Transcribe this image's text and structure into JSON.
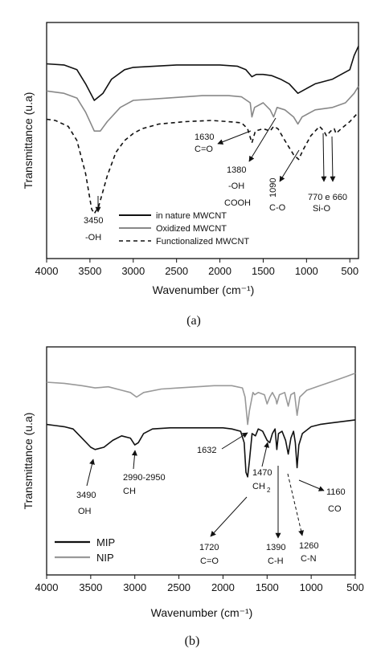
{
  "chart_data": [
    {
      "type": "line",
      "panel": "(a)",
      "xlabel": "Wavenumber (cm⁻¹)",
      "ylabel": "Transmittance (u.a)",
      "xlim": [
        4000,
        400
      ],
      "x_reversed": true,
      "xticks": [
        4000,
        3500,
        3000,
        2500,
        2000,
        1500,
        1000,
        500
      ],
      "ylim": [
        0,
        1
      ],
      "y_ticklabels": false,
      "grid": false,
      "legend_position": "bottom-center",
      "series": [
        {
          "name": "in nature MWCNT",
          "color": "#111111",
          "dash": "solid",
          "points": [
            [
              4000,
              0.825
            ],
            [
              3800,
              0.82
            ],
            [
              3650,
              0.8
            ],
            [
              3550,
              0.74
            ],
            [
              3450,
              0.67
            ],
            [
              3350,
              0.7
            ],
            [
              3250,
              0.76
            ],
            [
              3100,
              0.8
            ],
            [
              3000,
              0.81
            ],
            [
              2500,
              0.82
            ],
            [
              2000,
              0.82
            ],
            [
              1800,
              0.815
            ],
            [
              1700,
              0.8
            ],
            [
              1630,
              0.77
            ],
            [
              1580,
              0.78
            ],
            [
              1500,
              0.78
            ],
            [
              1400,
              0.775
            ],
            [
              1300,
              0.76
            ],
            [
              1200,
              0.74
            ],
            [
              1100,
              0.7
            ],
            [
              1000,
              0.72
            ],
            [
              900,
              0.74
            ],
            [
              800,
              0.75
            ],
            [
              700,
              0.76
            ],
            [
              600,
              0.78
            ],
            [
              500,
              0.8
            ],
            [
              450,
              0.86
            ],
            [
              400,
              0.9
            ]
          ]
        },
        {
          "name": "Oxidized MWCNT",
          "color": "#888888",
          "dash": "solid",
          "points": [
            [
              4000,
              0.71
            ],
            [
              3800,
              0.7
            ],
            [
              3650,
              0.68
            ],
            [
              3550,
              0.62
            ],
            [
              3450,
              0.54
            ],
            [
              3380,
              0.54
            ],
            [
              3300,
              0.58
            ],
            [
              3150,
              0.64
            ],
            [
              3000,
              0.67
            ],
            [
              2600,
              0.68
            ],
            [
              2200,
              0.69
            ],
            [
              1900,
              0.69
            ],
            [
              1750,
              0.685
            ],
            [
              1650,
              0.66
            ],
            [
              1630,
              0.6
            ],
            [
              1600,
              0.64
            ],
            [
              1500,
              0.66
            ],
            [
              1420,
              0.63
            ],
            [
              1380,
              0.6
            ],
            [
              1340,
              0.64
            ],
            [
              1250,
              0.63
            ],
            [
              1150,
              0.6
            ],
            [
              1100,
              0.57
            ],
            [
              1050,
              0.6
            ],
            [
              900,
              0.63
            ],
            [
              700,
              0.64
            ],
            [
              550,
              0.66
            ],
            [
              450,
              0.7
            ],
            [
              400,
              0.73
            ]
          ]
        },
        {
          "name": "Functionalized MWCNT",
          "color": "#111111",
          "dash": "dashed",
          "points": [
            [
              4000,
              0.59
            ],
            [
              3900,
              0.585
            ],
            [
              3750,
              0.56
            ],
            [
              3650,
              0.5
            ],
            [
              3550,
              0.36
            ],
            [
              3480,
              0.21
            ],
            [
              3450,
              0.19
            ],
            [
              3400,
              0.22
            ],
            [
              3300,
              0.35
            ],
            [
              3200,
              0.45
            ],
            [
              3100,
              0.5
            ],
            [
              3000,
              0.53
            ],
            [
              2900,
              0.55
            ],
            [
              2700,
              0.57
            ],
            [
              2400,
              0.58
            ],
            [
              2100,
              0.585
            ],
            [
              1900,
              0.58
            ],
            [
              1750,
              0.575
            ],
            [
              1680,
              0.55
            ],
            [
              1630,
              0.49
            ],
            [
              1590,
              0.54
            ],
            [
              1500,
              0.55
            ],
            [
              1420,
              0.54
            ],
            [
              1380,
              0.56
            ],
            [
              1330,
              0.55
            ],
            [
              1250,
              0.5
            ],
            [
              1150,
              0.44
            ],
            [
              1090,
              0.42
            ],
            [
              1040,
              0.46
            ],
            [
              950,
              0.52
            ],
            [
              850,
              0.56
            ],
            [
              800,
              0.54
            ],
            [
              770,
              0.52
            ],
            [
              720,
              0.54
            ],
            [
              680,
              0.55
            ],
            [
              660,
              0.53
            ],
            [
              600,
              0.55
            ],
            [
              500,
              0.58
            ],
            [
              450,
              0.6
            ],
            [
              400,
              0.62
            ]
          ]
        }
      ],
      "annotations": [
        {
          "text": "1630",
          "text2": "C=O"
        },
        {
          "text": "1380",
          "text2": "-OH",
          "text3": "COOH"
        },
        {
          "text": "1090",
          "text2": "C-O"
        },
        {
          "text": "770 e 660",
          "text2": "Si-O"
        },
        {
          "text": "3450",
          "text2": "-OH"
        }
      ]
    },
    {
      "type": "line",
      "panel": "(b)",
      "xlabel": "Wavenumber (cm⁻¹)",
      "ylabel": "Transmittance (u.a)",
      "xlim": [
        4000,
        500
      ],
      "x_reversed": true,
      "xticks": [
        4000,
        3500,
        3000,
        2500,
        2000,
        1500,
        1000,
        500
      ],
      "ylim": [
        0,
        1
      ],
      "y_ticklabels": false,
      "grid": false,
      "legend_position": "bottom-left",
      "series": [
        {
          "name": "NIP",
          "color": "#999999",
          "dash": "solid",
          "points": [
            [
              4000,
              0.845
            ],
            [
              3800,
              0.84
            ],
            [
              3600,
              0.83
            ],
            [
              3450,
              0.82
            ],
            [
              3300,
              0.825
            ],
            [
              3150,
              0.81
            ],
            [
              3050,
              0.8
            ],
            [
              2980,
              0.78
            ],
            [
              2900,
              0.8
            ],
            [
              2700,
              0.815
            ],
            [
              2500,
              0.82
            ],
            [
              2300,
              0.825
            ],
            [
              2100,
              0.83
            ],
            [
              1900,
              0.83
            ],
            [
              1780,
              0.82
            ],
            [
              1750,
              0.78
            ],
            [
              1720,
              0.66
            ],
            [
              1700,
              0.72
            ],
            [
              1660,
              0.8
            ],
            [
              1640,
              0.79
            ],
            [
              1600,
              0.8
            ],
            [
              1530,
              0.79
            ],
            [
              1500,
              0.75
            ],
            [
              1470,
              0.78
            ],
            [
              1440,
              0.8
            ],
            [
              1400,
              0.77
            ],
            [
              1390,
              0.75
            ],
            [
              1360,
              0.79
            ],
            [
              1300,
              0.8
            ],
            [
              1260,
              0.74
            ],
            [
              1230,
              0.79
            ],
            [
              1190,
              0.8
            ],
            [
              1160,
              0.7
            ],
            [
              1130,
              0.78
            ],
            [
              1050,
              0.81
            ],
            [
              900,
              0.83
            ],
            [
              750,
              0.85
            ],
            [
              600,
              0.87
            ],
            [
              500,
              0.885
            ]
          ]
        },
        {
          "name": "MIP",
          "color": "#111111",
          "dash": "solid",
          "points": [
            [
              4000,
              0.66
            ],
            [
              3900,
              0.655
            ],
            [
              3800,
              0.65
            ],
            [
              3700,
              0.64
            ],
            [
              3600,
              0.6
            ],
            [
              3500,
              0.56
            ],
            [
              3450,
              0.55
            ],
            [
              3350,
              0.56
            ],
            [
              3250,
              0.59
            ],
            [
              3150,
              0.61
            ],
            [
              3050,
              0.6
            ],
            [
              3000,
              0.57
            ],
            [
              2960,
              0.58
            ],
            [
              2900,
              0.62
            ],
            [
              2800,
              0.64
            ],
            [
              2600,
              0.645
            ],
            [
              2400,
              0.645
            ],
            [
              2200,
              0.645
            ],
            [
              2000,
              0.645
            ],
            [
              1900,
              0.64
            ],
            [
              1800,
              0.63
            ],
            [
              1760,
              0.58
            ],
            [
              1740,
              0.45
            ],
            [
              1720,
              0.43
            ],
            [
              1700,
              0.5
            ],
            [
              1670,
              0.62
            ],
            [
              1632,
              0.61
            ],
            [
              1600,
              0.64
            ],
            [
              1550,
              0.63
            ],
            [
              1500,
              0.59
            ],
            [
              1470,
              0.58
            ],
            [
              1440,
              0.62
            ],
            [
              1410,
              0.64
            ],
            [
              1390,
              0.55
            ],
            [
              1370,
              0.62
            ],
            [
              1330,
              0.63
            ],
            [
              1290,
              0.59
            ],
            [
              1260,
              0.53
            ],
            [
              1230,
              0.6
            ],
            [
              1200,
              0.63
            ],
            [
              1180,
              0.58
            ],
            [
              1160,
              0.47
            ],
            [
              1140,
              0.57
            ],
            [
              1100,
              0.62
            ],
            [
              1000,
              0.65
            ],
            [
              900,
              0.66
            ],
            [
              800,
              0.665
            ],
            [
              700,
              0.67
            ],
            [
              600,
              0.675
            ],
            [
              500,
              0.68
            ]
          ]
        }
      ],
      "annotations": [
        {
          "text": "1632"
        },
        {
          "text": "1470",
          "text2": "CH",
          "sub": "2"
        },
        {
          "text": "3490",
          "text2": "OH"
        },
        {
          "text": "2990-2950",
          "text2": "CH"
        },
        {
          "text": "1720",
          "text2": "C=O"
        },
        {
          "text": "1390",
          "text2": "C-H"
        },
        {
          "text": "1260",
          "text2": "C-N"
        },
        {
          "text": "1160",
          "text2": "CO"
        }
      ]
    }
  ]
}
